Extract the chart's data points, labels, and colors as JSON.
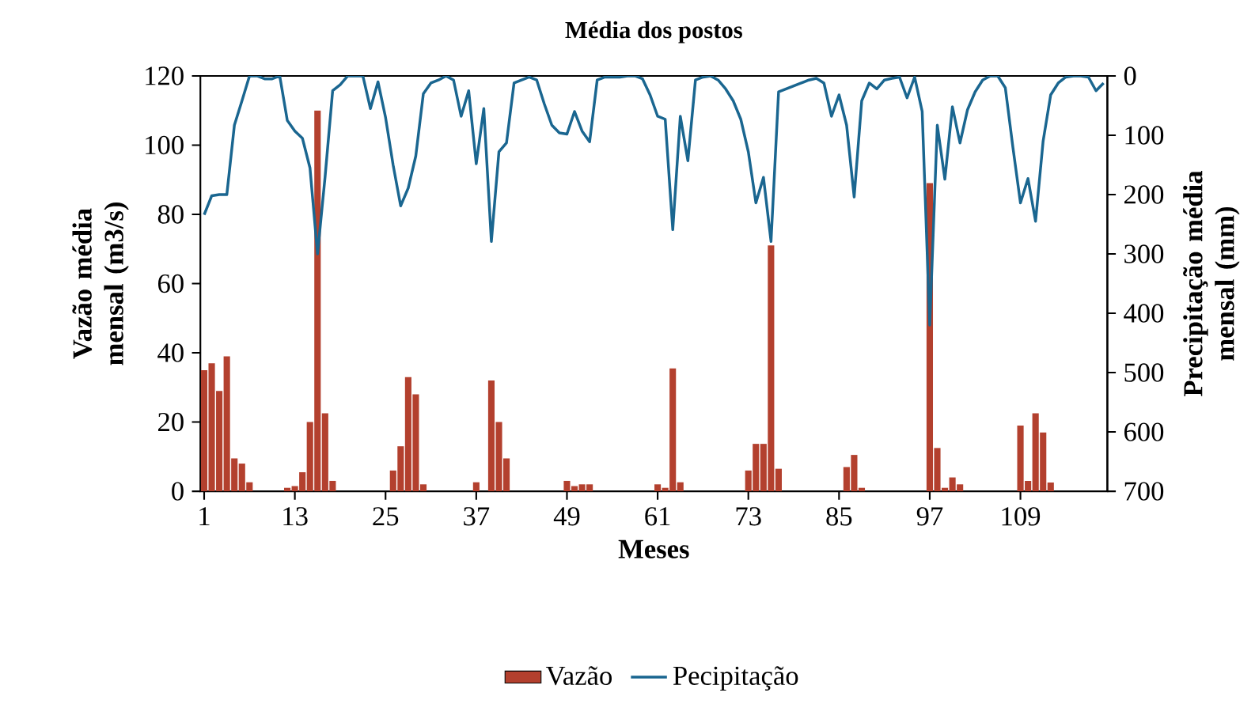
{
  "chart_data": {
    "type": "bar",
    "title": "Média dos postos",
    "xlabel": "Meses",
    "ylabel": "Vazão média mensal (m3/s)",
    "y2label": "Precipitação média mensal (mm)",
    "legend": "bottom",
    "x": [
      1,
      2,
      3,
      4,
      5,
      6,
      7,
      8,
      9,
      10,
      11,
      12,
      13,
      14,
      15,
      16,
      17,
      18,
      19,
      20,
      21,
      22,
      23,
      24,
      25,
      26,
      27,
      28,
      29,
      30,
      31,
      32,
      33,
      34,
      35,
      36,
      37,
      38,
      39,
      40,
      41,
      42,
      43,
      44,
      45,
      46,
      47,
      48,
      49,
      50,
      51,
      52,
      53,
      54,
      55,
      56,
      57,
      58,
      59,
      60,
      61,
      62,
      63,
      64,
      65,
      66,
      67,
      68,
      69,
      70,
      71,
      72,
      73,
      74,
      75,
      76,
      77,
      78,
      79,
      80,
      81,
      82,
      83,
      84,
      85,
      86,
      87,
      88,
      89,
      90,
      91,
      92,
      93,
      94,
      95,
      96,
      97,
      98,
      99,
      100,
      101,
      102,
      103,
      104,
      105,
      106,
      107,
      108,
      109,
      110,
      111,
      112,
      113,
      114,
      115,
      116,
      117,
      118,
      119,
      120
    ],
    "xlim": [
      0.5,
      120.5
    ],
    "xticks": [
      1,
      13,
      25,
      37,
      49,
      61,
      73,
      85,
      97,
      109
    ],
    "ylim": [
      0,
      120
    ],
    "yticks": [
      0,
      20,
      40,
      60,
      80,
      100,
      120
    ],
    "y2lim": [
      700,
      0
    ],
    "y2ticks": [
      0,
      100,
      200,
      300,
      400,
      500,
      600,
      700
    ],
    "series": [
      {
        "name": "Vazão",
        "color": "#b3402e",
        "values": [
          35,
          37,
          29,
          39,
          9.5,
          8,
          2.6,
          0,
          0,
          0,
          0,
          1,
          1.5,
          5.5,
          20,
          110,
          22.5,
          3,
          0,
          0,
          0,
          0,
          0,
          0,
          0,
          6,
          13,
          33,
          28,
          2,
          0,
          0,
          0,
          0,
          0,
          0,
          2.6,
          0,
          32,
          20,
          9.5,
          0,
          0,
          0,
          0,
          0,
          0,
          0,
          3,
          1.5,
          2,
          2,
          0,
          0,
          0,
          0,
          0,
          0,
          0,
          0,
          2,
          1,
          35.5,
          2.6,
          0,
          0,
          0,
          0,
          0,
          0,
          0,
          0,
          6,
          13.7,
          13.7,
          71,
          6.5,
          0,
          0,
          0,
          0,
          0,
          0,
          0,
          0,
          7,
          10.5,
          1,
          0,
          0,
          0,
          0,
          0,
          0,
          0,
          0,
          89,
          12.5,
          1,
          4,
          2,
          0,
          0,
          0,
          0,
          0,
          0,
          0,
          19,
          3,
          22.5,
          17,
          2.5,
          0,
          0,
          0,
          0,
          0,
          0,
          0
        ]
      },
      {
        "name": "Pecipitação",
        "type": "line",
        "axis": "y2",
        "color": "#1a6690",
        "values": [
          234,
          202,
          200,
          200,
          83,
          42,
          0,
          0,
          5,
          5,
          0,
          75,
          93,
          105,
          155,
          300,
          170,
          25,
          15,
          0,
          0,
          0,
          55,
          10,
          70,
          150,
          219,
          189,
          135,
          30,
          12,
          7,
          0,
          7,
          68,
          25,
          148,
          55,
          279,
          128,
          113,
          12,
          7,
          2,
          7,
          47,
          83,
          96,
          98,
          60,
          93,
          111,
          7,
          2,
          2,
          2,
          0,
          0,
          5,
          32,
          68,
          73,
          259,
          68,
          143,
          7,
          2,
          0,
          7,
          22,
          42,
          73,
          128,
          214,
          171,
          279,
          27,
          22,
          17,
          12,
          7,
          4,
          12,
          68,
          32,
          83,
          204,
          42,
          12,
          22,
          7,
          4,
          2,
          37,
          2,
          60,
          420,
          83,
          174,
          52,
          113,
          57,
          27,
          7,
          0,
          0,
          20,
          120,
          214,
          173,
          245,
          110,
          32,
          12,
          2,
          0,
          0,
          2,
          25,
          12
        ]
      }
    ]
  }
}
